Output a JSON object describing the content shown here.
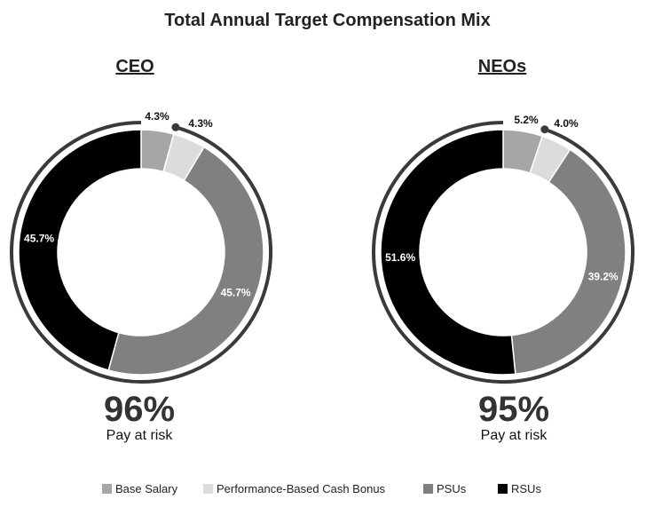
{
  "title": "Total Annual Target Compensation Mix",
  "colors": {
    "base_salary": "#a6a6a6",
    "cash_bonus": "#dcdcdc",
    "psus": "#808080",
    "rsus": "#000000",
    "ring": "#3a3a3a"
  },
  "chart_data": [
    {
      "type": "pie",
      "title": "CEO",
      "categories": [
        "Base Salary",
        "Performance-Based Cash Bonus",
        "PSUs",
        "RSUs"
      ],
      "values": [
        4.3,
        4.3,
        45.7,
        45.7
      ],
      "labels": [
        "4.3%",
        "4.3%",
        "45.7%",
        "45.7%"
      ],
      "at_risk_value": "96%",
      "at_risk_label": "Pay at risk"
    },
    {
      "type": "pie",
      "title": "NEOs",
      "categories": [
        "Base Salary",
        "Performance-Based Cash Bonus",
        "PSUs",
        "RSUs"
      ],
      "values": [
        5.2,
        4.0,
        39.2,
        51.6
      ],
      "labels": [
        "5.2%",
        "4.0%",
        "39.2%",
        "51.6%"
      ],
      "at_risk_value": "95%",
      "at_risk_label": "Pay at risk"
    }
  ],
  "legend": [
    "Base Salary",
    "Performance-Based Cash Bonus",
    "PSUs",
    "RSUs"
  ]
}
